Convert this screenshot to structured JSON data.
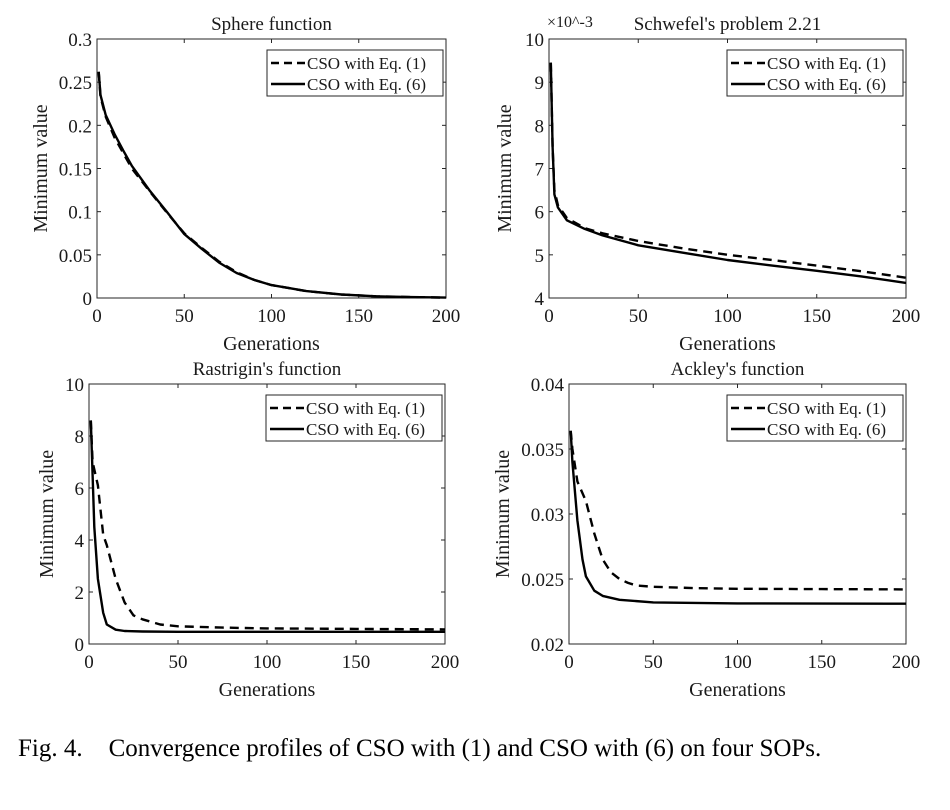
{
  "chart_data": [
    {
      "type": "line",
      "title": "Sphere function",
      "xlabel": "Generations",
      "ylabel": "Minimum value",
      "xlim": [
        0,
        200
      ],
      "ylim": [
        0,
        0.3
      ],
      "xticks": [
        "0",
        "50",
        "100",
        "150",
        "200"
      ],
      "yticks": [
        "0",
        "0.05",
        "0.1",
        "0.15",
        "0.2",
        "0.25",
        "0.3"
      ],
      "grid": false,
      "legend": "top-right",
      "series": [
        {
          "name": "CSO with Eq. (1)",
          "style": "dashed",
          "x": [
            1,
            2,
            5,
            10,
            15,
            20,
            30,
            40,
            50,
            60,
            70,
            80,
            90,
            100,
            120,
            140,
            160,
            180,
            200
          ],
          "y": [
            0.262,
            0.233,
            0.21,
            0.186,
            0.168,
            0.15,
            0.124,
            0.099,
            0.075,
            0.058,
            0.042,
            0.03,
            0.021,
            0.015,
            0.008,
            0.004,
            0.002,
            0.001,
            0.0005
          ]
        },
        {
          "name": "CSO with Eq. (6)",
          "style": "solid",
          "x": [
            1,
            2,
            5,
            10,
            15,
            20,
            30,
            40,
            50,
            60,
            70,
            80,
            90,
            100,
            120,
            140,
            160,
            180,
            200
          ],
          "y": [
            0.262,
            0.235,
            0.212,
            0.19,
            0.171,
            0.153,
            0.125,
            0.1,
            0.074,
            0.057,
            0.041,
            0.029,
            0.021,
            0.015,
            0.008,
            0.004,
            0.002,
            0.001,
            0.0005
          ]
        }
      ]
    },
    {
      "type": "line",
      "title": "Schwefel's problem 2.21",
      "xlabel": "Generations",
      "ylabel": "Minimum value",
      "yscale_multiplier": "×10^-3",
      "xlim": [
        0,
        200
      ],
      "ylim": [
        4,
        10
      ],
      "xticks": [
        "0",
        "50",
        "100",
        "150",
        "200"
      ],
      "yticks": [
        "4",
        "5",
        "6",
        "7",
        "8",
        "9",
        "10"
      ],
      "grid": false,
      "legend": "top-right",
      "series": [
        {
          "name": "CSO with Eq. (1)",
          "style": "dashed",
          "x": [
            1,
            2,
            3,
            5,
            10,
            20,
            30,
            50,
            75,
            100,
            125,
            150,
            175,
            200
          ],
          "y": [
            9.45,
            7.5,
            6.5,
            6.15,
            5.85,
            5.62,
            5.5,
            5.32,
            5.15,
            5.0,
            4.88,
            4.75,
            4.62,
            4.47
          ]
        },
        {
          "name": "CSO with Eq. (6)",
          "style": "solid",
          "x": [
            1,
            2,
            3,
            5,
            10,
            20,
            30,
            50,
            75,
            100,
            125,
            150,
            175,
            200
          ],
          "y": [
            9.45,
            7.5,
            6.4,
            6.1,
            5.8,
            5.6,
            5.45,
            5.22,
            5.05,
            4.88,
            4.75,
            4.63,
            4.5,
            4.35
          ]
        }
      ]
    },
    {
      "type": "line",
      "title": "Rastrigin's function",
      "xlabel": "Generations",
      "ylabel": "Minimum value",
      "xlim": [
        0,
        200
      ],
      "ylim": [
        0,
        10
      ],
      "xticks": [
        "0",
        "50",
        "100",
        "150",
        "200"
      ],
      "yticks": [
        "0",
        "2",
        "4",
        "6",
        "8",
        "10"
      ],
      "grid": false,
      "legend": "top-right",
      "series": [
        {
          "name": "CSO with Eq. (1)",
          "style": "dashed",
          "x": [
            1,
            2,
            5,
            8,
            10,
            15,
            20,
            25,
            30,
            40,
            50,
            75,
            100,
            150,
            200
          ],
          "y": [
            8.6,
            7.0,
            6.1,
            4.2,
            3.8,
            2.5,
            1.6,
            1.1,
            0.95,
            0.75,
            0.68,
            0.63,
            0.6,
            0.58,
            0.56
          ]
        },
        {
          "name": "CSO with Eq. (6)",
          "style": "solid",
          "x": [
            1,
            2,
            3,
            5,
            8,
            10,
            15,
            20,
            30,
            50,
            100,
            200
          ],
          "y": [
            8.6,
            6.5,
            4.5,
            2.5,
            1.2,
            0.75,
            0.55,
            0.5,
            0.48,
            0.47,
            0.47,
            0.47
          ]
        }
      ]
    },
    {
      "type": "line",
      "title": "Ackley's function",
      "xlabel": "Generations",
      "ylabel": "Minimum value",
      "xlim": [
        0,
        200
      ],
      "ylim": [
        0.02,
        0.04
      ],
      "xticks": [
        "0",
        "50",
        "100",
        "150",
        "200"
      ],
      "yticks": [
        "0.02",
        "0.025",
        "0.03",
        "0.035",
        "0.04"
      ],
      "grid": false,
      "legend": "top-right",
      "series": [
        {
          "name": "CSO with Eq. (1)",
          "style": "dashed",
          "x": [
            1,
            2,
            5,
            10,
            15,
            20,
            25,
            30,
            35,
            40,
            50,
            75,
            100,
            150,
            200
          ],
          "y": [
            0.0364,
            0.035,
            0.0325,
            0.031,
            0.0285,
            0.0265,
            0.0255,
            0.025,
            0.0247,
            0.0245,
            0.0244,
            0.0243,
            0.02425,
            0.02422,
            0.0242
          ]
        },
        {
          "name": "CSO with Eq. (6)",
          "style": "solid",
          "x": [
            1,
            2,
            5,
            8,
            10,
            15,
            20,
            30,
            50,
            100,
            200
          ],
          "y": [
            0.0364,
            0.034,
            0.0295,
            0.0265,
            0.0252,
            0.0241,
            0.0237,
            0.0234,
            0.0232,
            0.02312,
            0.0231
          ]
        }
      ]
    }
  ],
  "caption": {
    "label": "Fig. 4.",
    "text": "Convergence profiles of CSO with (1) and CSO with (6) on four SOPs."
  }
}
